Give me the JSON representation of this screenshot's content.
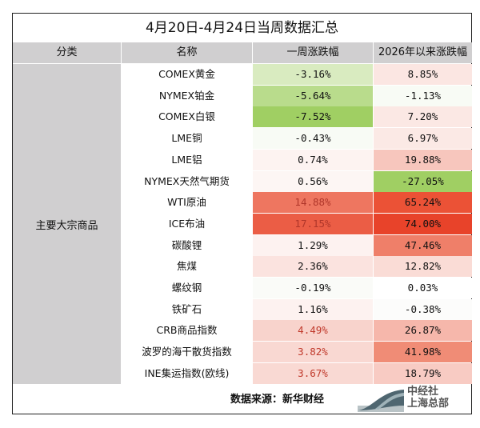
{
  "title": "4月20日-4月24日当周数据汇总",
  "headers": [
    "分类",
    "名称",
    "一周涨跌幅",
    "2026年以来涨跌幅"
  ],
  "category": "主要大宗商品",
  "rows": [
    {
      "name": "COMEX黄金",
      "weekly": "-3.16%",
      "ytd": "8.85%",
      "wbg": "#d9ebc0",
      "ybg": "#fbe6e2"
    },
    {
      "name": "NYMEX铂金",
      "weekly": "-5.64%",
      "ytd": "-1.13%",
      "wbg": "#b9dc8c",
      "ybg": "#f8fbf5"
    },
    {
      "name": "COMEX白银",
      "weekly": "-7.52%",
      "ytd": "7.20%",
      "wbg": "#a0cf63",
      "ybg": "#fbe8e4"
    },
    {
      "name": "LME铜",
      "weekly": "-0.43%",
      "ytd": "6.97%",
      "wbg": "#f8fbf5",
      "ybg": "#fbe9e5"
    },
    {
      "name": "LME铝",
      "weekly": "0.74%",
      "ytd": "19.88%",
      "wbg": "#fdf3f1",
      "ybg": "#f7c6bd"
    },
    {
      "name": "NYMEX天然气期货",
      "weekly": "0.56%",
      "ytd": "-27.05%",
      "wbg": "#fdf6f4",
      "ybg": "#a0cf63"
    },
    {
      "name": "WTI原油",
      "weekly": "14.88%",
      "ytd": "65.24%",
      "wbg": "#ee7660",
      "ybg": "#eb5236",
      "wcolor": "#b0362a"
    },
    {
      "name": "ICE布油",
      "weekly": "17.15%",
      "ytd": "74.00%",
      "wbg": "#eb5d45",
      "ybg": "#e8432a",
      "wcolor": "#b0362a"
    },
    {
      "name": "碳酸锂",
      "weekly": "1.29%",
      "ytd": "47.46%",
      "wbg": "#fdf2f0",
      "ybg": "#ef7f69"
    },
    {
      "name": "焦煤",
      "weekly": "2.36%",
      "ytd": "12.82%",
      "wbg": "#fbe3df",
      "ybg": "#fadcd6"
    },
    {
      "name": "螺纹钢",
      "weekly": "-0.19%",
      "ytd": "0.03%",
      "wbg": "#fafbf8",
      "ybg": "#ffffff"
    },
    {
      "name": "铁矿石",
      "weekly": "1.16%",
      "ytd": "-0.38%",
      "wbg": "#fdf2f0",
      "ybg": "#fcfcfb"
    },
    {
      "name": "CRB商品指数",
      "weekly": "4.49%",
      "ytd": "26.87%",
      "wbg": "#f8d3cc",
      "ybg": "#f6b7ab",
      "wcolor": "#c0392b"
    },
    {
      "name": "波罗的海干散货指数",
      "weekly": "3.82%",
      "ytd": "41.98%",
      "wbg": "#f9d8d2",
      "ybg": "#f08c76",
      "wcolor": "#c0392b"
    },
    {
      "name": "INE集运指数(欧线)",
      "weekly": "3.67%",
      "ytd": "18.79%",
      "wbg": "#f9d9d3",
      "ybg": "#f8cbc3",
      "wcolor": "#c0392b"
    }
  ],
  "footer": {
    "source": "数据来源：新华财经",
    "logo_text_1": "中经社",
    "logo_text_2": "上海总部"
  }
}
